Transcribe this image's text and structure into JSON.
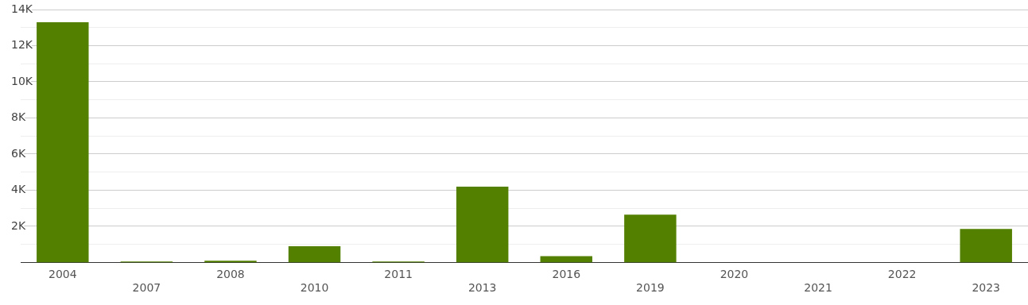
{
  "chart_data": {
    "type": "bar",
    "categories": [
      "2004",
      "2007",
      "2008",
      "2010",
      "2011",
      "2013",
      "2016",
      "2019",
      "2020",
      "2021",
      "2022",
      "2023"
    ],
    "values": [
      13300,
      50,
      100,
      900,
      50,
      4200,
      350,
      2650,
      0,
      0,
      0,
      1850
    ],
    "color": "#548000",
    "ylim": [
      0,
      14000
    ],
    "yticks": [
      {
        "value": 1000,
        "label": null
      },
      {
        "value": 2000,
        "label": "2K"
      },
      {
        "value": 3000,
        "label": null
      },
      {
        "value": 4000,
        "label": "4K"
      },
      {
        "value": 5000,
        "label": null
      },
      {
        "value": 6000,
        "label": "6K"
      },
      {
        "value": 7000,
        "label": null
      },
      {
        "value": 8000,
        "label": "8K"
      },
      {
        "value": 9000,
        "label": null
      },
      {
        "value": 10000,
        "label": "10K"
      },
      {
        "value": 11000,
        "label": null
      },
      {
        "value": 12000,
        "label": "12K"
      },
      {
        "value": 13000,
        "label": null
      },
      {
        "value": 14000,
        "label": "14K"
      }
    ],
    "grid": "y",
    "legend": false
  }
}
